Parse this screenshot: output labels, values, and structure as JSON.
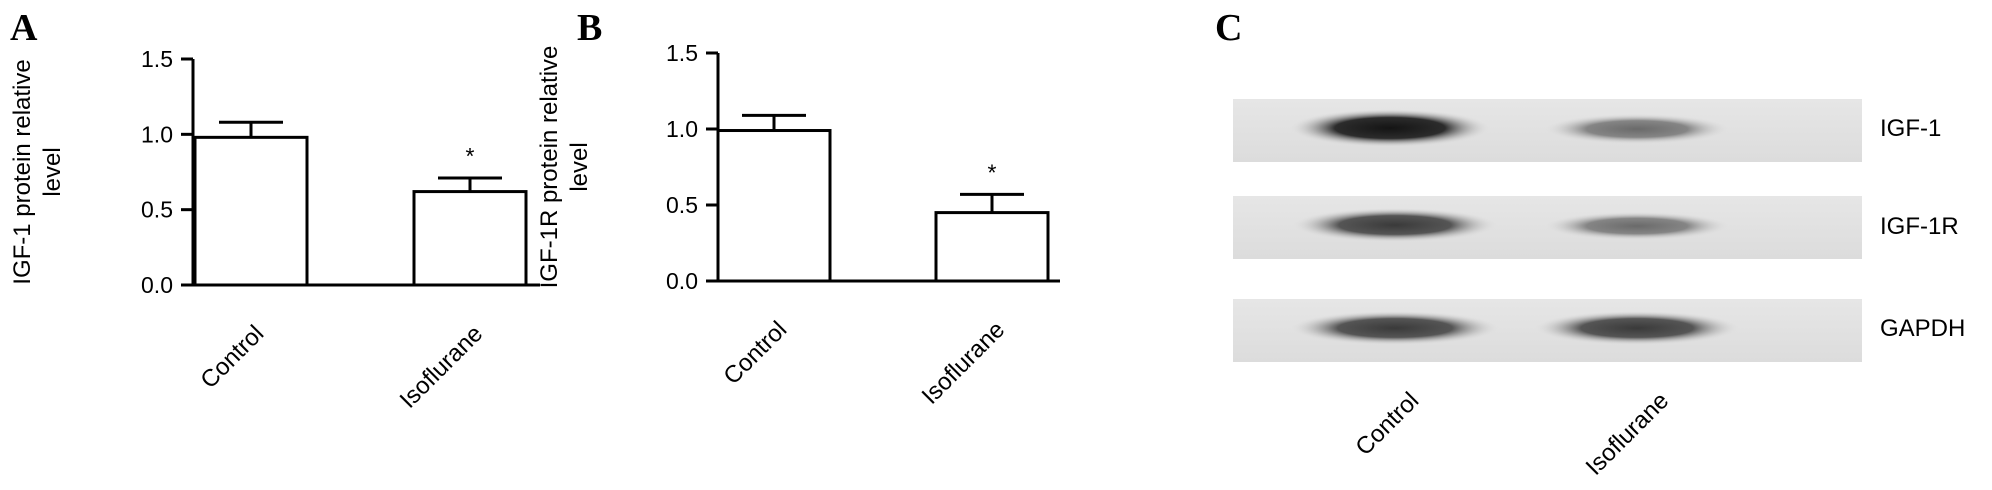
{
  "panels": {
    "a": {
      "letter": "A"
    },
    "b": {
      "letter": "B"
    },
    "c": {
      "letter": "C"
    }
  },
  "chart_data": [
    {
      "type": "bar",
      "panel": "A",
      "categories": [
        "Control",
        "Isoflurane"
      ],
      "values": [
        0.98,
        0.62
      ],
      "errors": [
        0.1,
        0.09
      ],
      "significance": [
        "",
        "*"
      ],
      "ylabel": "IGF-1 protein relative level",
      "ylabel_lines": [
        "IGF-1 protein relative",
        "level"
      ],
      "ylim": [
        0,
        1.5
      ],
      "yticks": [
        "0.0",
        "0.5",
        "1.0",
        "1.5"
      ]
    },
    {
      "type": "bar",
      "panel": "B",
      "categories": [
        "Control",
        "Isoflurane"
      ],
      "values": [
        0.99,
        0.45
      ],
      "errors": [
        0.1,
        0.12
      ],
      "significance": [
        "",
        "*"
      ],
      "ylabel": "IGF-1R protein relative level",
      "ylabel_lines": [
        "IGF-1R protein relative",
        "level"
      ],
      "ylim": [
        0,
        1.5
      ],
      "yticks": [
        "0.0",
        "0.5",
        "1.0",
        "1.5"
      ]
    }
  ],
  "western_blot": {
    "rows": [
      "IGF-1",
      "IGF-1R",
      "GAPDH"
    ],
    "lanes": [
      "Control",
      "Isoflurane"
    ]
  }
}
